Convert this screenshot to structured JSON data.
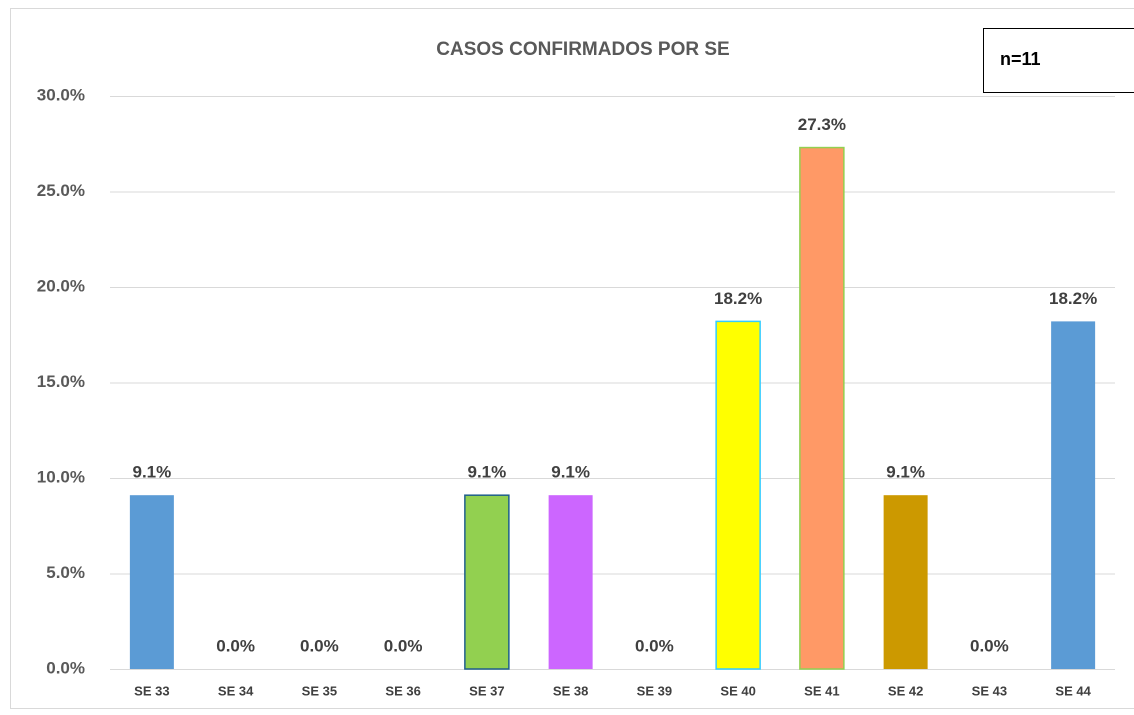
{
  "chart_data": {
    "type": "bar",
    "title": "CASOS CONFIRMADOS POR SE",
    "annotation": "n=11",
    "categories": [
      "SE 33",
      "SE 34",
      "SE 35",
      "SE 36",
      "SE 37",
      "SE 38",
      "SE 39",
      "SE 40",
      "SE 41",
      "SE 42",
      "SE 43",
      "SE 44"
    ],
    "values": [
      9.1,
      0,
      0,
      0,
      9.1,
      9.1,
      0,
      18.2,
      27.3,
      9.1,
      0,
      18.2
    ],
    "value_labels": [
      "9.1%",
      "0.0%",
      "0.0%",
      "0.0%",
      "9.1%",
      "9.1%",
      "0.0%",
      "18.2%",
      "27.3%",
      "9.1%",
      "0.0%",
      "18.2%"
    ],
    "colors": [
      "#5b9bd5",
      "#5b9bd5",
      "#5b9bd5",
      "#5b9bd5",
      "#92d050",
      "#cc66ff",
      "#5b9bd5",
      "#ffff00",
      "#ff9966",
      "#cc9900",
      "#5b9bd5",
      "#5b9bd5"
    ],
    "ylim": [
      0,
      30
    ],
    "yticks": [
      {
        "value": 0,
        "label": "0.0%"
      },
      {
        "value": 5,
        "label": "5.0%"
      },
      {
        "value": 10,
        "label": "10.0%"
      },
      {
        "value": 15,
        "label": "15.0%"
      },
      {
        "value": 20,
        "label": "20.0%"
      },
      {
        "value": 25,
        "label": "25.0%"
      },
      {
        "value": 30,
        "label": "30.0%"
      }
    ],
    "grid": true
  }
}
